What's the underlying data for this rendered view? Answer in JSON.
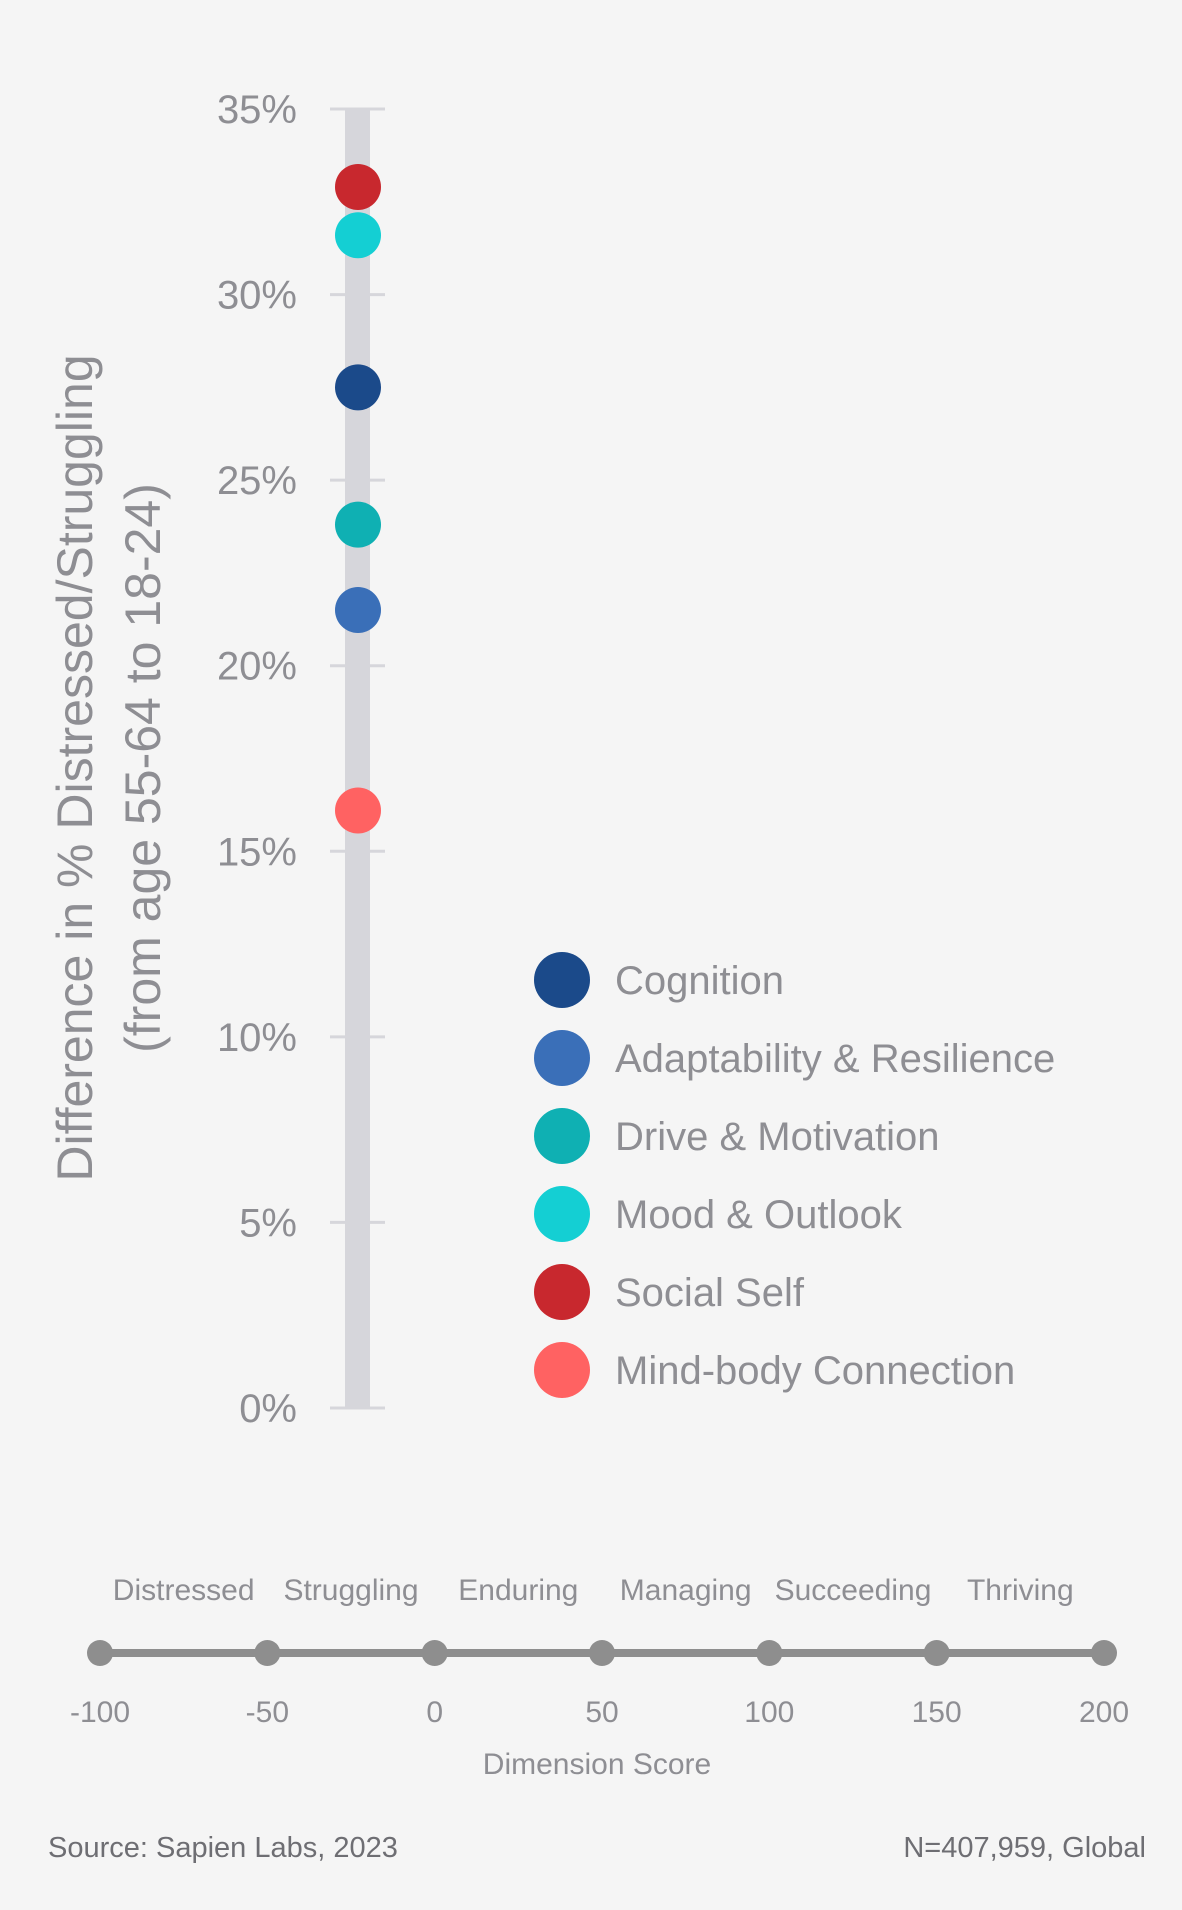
{
  "chart_data": {
    "type": "scatter",
    "ylabel_line1": "Difference in % Distressed/Struggling",
    "ylabel_line2": "(from age 55-64 to 18-24)",
    "ylim": [
      0,
      35
    ],
    "yticks": [
      "0%",
      "5%",
      "10%",
      "15%",
      "20%",
      "25%",
      "30%",
      "35%"
    ],
    "x_value": -22,
    "series": [
      {
        "name": "Cognition",
        "value": 27.5,
        "color": "#1b4a8a"
      },
      {
        "name": "Adaptability & Resilience",
        "value": 21.5,
        "color": "#3a6fb8"
      },
      {
        "name": "Drive & Motivation",
        "value": 23.8,
        "color": "#0fb0b3"
      },
      {
        "name": "Mood & Outlook",
        "value": 31.6,
        "color": "#14cfd3"
      },
      {
        "name": "Social Self",
        "value": 32.9,
        "color": "#c8282e"
      },
      {
        "name": "Mind-body Connection",
        "value": 16.1,
        "color": "#ff6262"
      }
    ],
    "legend_position": "right",
    "grid": false
  },
  "scale": {
    "categories": [
      "Distressed",
      "Struggling",
      "Enduring",
      "Managing",
      "Succeeding",
      "Thriving"
    ],
    "ticks": [
      "-100",
      "-50",
      "0",
      "50",
      "100",
      "150",
      "200"
    ],
    "title": "Dimension Score"
  },
  "footer": {
    "source": "Source: Sapien Labs, 2023",
    "sample": "N=407,959, Global"
  },
  "colors": {
    "axis_bar": "#d6d6db",
    "text": "#8e8e93",
    "scale_line": "#8e8e8e"
  }
}
